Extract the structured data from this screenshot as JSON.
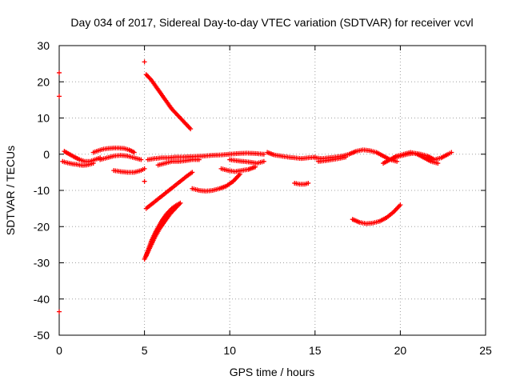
{
  "chart_data": {
    "type": "scatter",
    "title": "Day 034 of 2017, Sidereal Day-to-day VTEC variation (SDTVAR) for receiver vcvl",
    "xlabel": "GPS time / hours",
    "ylabel": "SDTVAR / TECUs",
    "xlim": [
      0,
      25
    ],
    "ylim": [
      -50,
      30
    ],
    "xticks": [
      "0",
      "5",
      "10",
      "15",
      "20",
      "25"
    ],
    "yticks": [
      "30",
      "20",
      "10",
      "0",
      "-10",
      "-20",
      "-30",
      "-40",
      "-50"
    ],
    "grid": true,
    "marker_color": "#ff0000",
    "marker": "plus",
    "series": [
      {
        "x": [
          0.0,
          0.0
        ],
        "y": [
          22.5,
          16.0
        ]
      },
      {
        "x": [
          0.0
        ],
        "y": [
          -43.5
        ]
      },
      {
        "x": [
          0.2,
          0.4,
          0.6,
          0.8,
          1.0,
          1.2,
          1.4,
          1.6,
          1.8,
          2.0
        ],
        "y": [
          -2.0,
          -2.3,
          -2.5,
          -2.7,
          -2.8,
          -3.0,
          -3.1,
          -3.0,
          -2.8,
          -2.5
        ]
      },
      {
        "x": [
          0.3,
          0.6,
          0.9,
          1.2,
          1.5,
          1.8,
          2.1,
          2.4
        ],
        "y": [
          0.8,
          0.0,
          -0.8,
          -1.5,
          -2.0,
          -2.0,
          -1.5,
          -1.0
        ]
      },
      {
        "x": [
          2.0,
          2.3,
          2.6,
          2.9,
          3.2,
          3.5,
          3.8,
          4.1,
          4.4
        ],
        "y": [
          0.5,
          1.0,
          1.4,
          1.6,
          1.7,
          1.7,
          1.6,
          1.2,
          0.5
        ]
      },
      {
        "x": [
          2.4,
          2.8,
          3.2,
          3.6,
          4.0,
          4.4,
          4.8
        ],
        "y": [
          -1.5,
          -1.0,
          -0.5,
          -0.3,
          -0.5,
          -1.0,
          -1.5
        ]
      },
      {
        "x": [
          3.2,
          3.6,
          4.0,
          4.4,
          4.8,
          5.0
        ],
        "y": [
          -4.5,
          -4.8,
          -5.0,
          -5.0,
          -4.5,
          -4.0
        ]
      },
      {
        "x": [
          5.0
        ],
        "y": [
          25.5
        ]
      },
      {
        "x": [
          5.1,
          5.4,
          5.7,
          6.0,
          6.3,
          6.6,
          6.9,
          7.2,
          7.5,
          7.7
        ],
        "y": [
          22.0,
          20.5,
          18.5,
          16.5,
          14.5,
          12.5,
          11.0,
          9.5,
          8.0,
          7.0
        ]
      },
      {
        "x": [
          5.0
        ],
        "y": [
          -7.5
        ]
      },
      {
        "x": [
          5.1,
          5.5,
          5.9,
          6.3,
          6.7,
          7.1,
          7.5,
          7.8
        ],
        "y": [
          -15.0,
          -13.5,
          -12.0,
          -10.5,
          -9.0,
          -7.5,
          -6.0,
          -5.0
        ]
      },
      {
        "x": [
          5.0,
          5.3,
          5.6,
          5.9,
          6.2,
          6.5,
          6.8,
          7.1
        ],
        "y": [
          -29.0,
          -26.0,
          -23.0,
          -20.5,
          -18.5,
          -16.5,
          -15.0,
          -13.5
        ]
      },
      {
        "x": [
          5.1,
          5.4,
          5.7,
          6.0,
          6.3,
          6.6,
          6.9,
          7.1
        ],
        "y": [
          -28.0,
          -24.0,
          -21.0,
          -18.5,
          -16.5,
          -15.0,
          -14.0,
          -13.5
        ]
      },
      {
        "x": [
          5.2,
          5.6,
          6.0,
          6.4,
          6.8,
          7.2,
          7.6,
          8.0,
          8.5,
          9.0,
          9.5,
          10.0,
          10.5,
          11.0,
          11.5,
          12.0
        ],
        "y": [
          -1.5,
          -1.2,
          -1.0,
          -1.0,
          -0.8,
          -0.8,
          -0.7,
          -0.6,
          -0.5,
          -0.3,
          -0.2,
          0.0,
          0.2,
          0.3,
          0.2,
          0.0
        ]
      },
      {
        "x": [
          5.8,
          6.2,
          6.6,
          7.0,
          7.4,
          7.8,
          8.2
        ],
        "y": [
          -3.0,
          -2.5,
          -2.0,
          -2.0,
          -1.8,
          -1.5,
          -1.5
        ]
      },
      {
        "x": [
          7.8,
          8.2,
          8.6,
          9.0,
          9.4,
          9.8,
          10.2,
          10.6
        ],
        "y": [
          -9.5,
          -10.0,
          -10.2,
          -10.0,
          -9.5,
          -8.8,
          -7.5,
          -5.5
        ]
      },
      {
        "x": [
          9.5,
          9.9,
          10.3,
          10.7,
          11.1,
          11.5
        ],
        "y": [
          -4.0,
          -4.5,
          -4.8,
          -4.5,
          -4.2,
          -3.5
        ]
      },
      {
        "x": [
          10.0,
          10.4,
          10.8,
          11.2,
          11.6,
          12.0
        ],
        "y": [
          -1.5,
          -1.8,
          -2.0,
          -2.2,
          -2.5,
          -2.0
        ]
      },
      {
        "x": [
          12.2,
          12.6,
          13.0,
          13.4,
          13.8,
          14.2,
          14.6,
          15.0
        ],
        "y": [
          0.5,
          -0.2,
          -0.5,
          -0.8,
          -1.0,
          -1.2,
          -1.0,
          -0.8
        ]
      },
      {
        "x": [
          13.8,
          14.1,
          14.4,
          14.6
        ],
        "y": [
          -8.0,
          -8.3,
          -8.3,
          -8.0
        ]
      },
      {
        "x": [
          15.0,
          15.4,
          15.8,
          16.2,
          16.6,
          17.0,
          17.4,
          17.8,
          18.2,
          18.6,
          19.0,
          19.4,
          19.8
        ],
        "y": [
          -1.0,
          -1.2,
          -1.0,
          -0.8,
          -0.5,
          0.0,
          0.8,
          1.2,
          1.0,
          0.5,
          -0.5,
          -1.5,
          -2.0
        ]
      },
      {
        "x": [
          15.2,
          15.6,
          16.0,
          16.4,
          16.8
        ],
        "y": [
          -2.0,
          -1.8,
          -1.5,
          -1.2,
          -0.8
        ]
      },
      {
        "x": [
          17.2,
          17.6,
          18.0,
          18.4,
          18.8,
          19.2,
          19.6,
          20.0
        ],
        "y": [
          -18.0,
          -18.8,
          -19.2,
          -19.0,
          -18.5,
          -17.5,
          -16.0,
          -14.0
        ]
      },
      {
        "x": [
          19.0,
          19.4,
          19.8,
          20.2,
          20.6,
          21.0,
          21.4,
          21.8,
          22.2
        ],
        "y": [
          -2.5,
          -1.5,
          -0.5,
          0.0,
          0.5,
          0.0,
          -1.0,
          -2.0,
          -2.5
        ]
      },
      {
        "x": [
          19.6,
          20.0,
          20.4,
          20.8,
          21.2,
          21.6,
          22.0,
          22.4,
          22.8,
          23.0
        ],
        "y": [
          -1.0,
          -0.5,
          0.0,
          0.3,
          0.0,
          -0.5,
          -1.5,
          -1.0,
          0.0,
          0.5
        ]
      }
    ]
  }
}
